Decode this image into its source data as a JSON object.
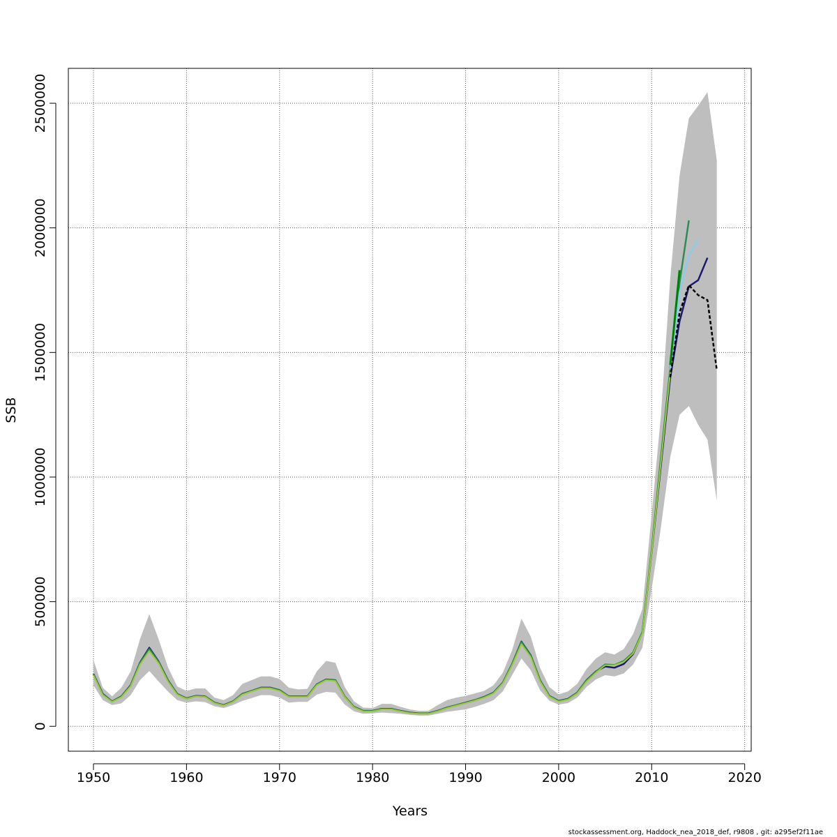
{
  "chart_data": {
    "type": "line",
    "xlabel": "Years",
    "ylabel": "SSB",
    "xlim": [
      1947.3,
      2020.7
    ],
    "ylim": [
      -100000,
      2640000
    ],
    "x_ticks": [
      1950,
      1960,
      1970,
      1980,
      1990,
      2000,
      2010,
      2020
    ],
    "y_ticks": [
      0,
      500000,
      1000000,
      1500000,
      2000000,
      2500000
    ],
    "y_tick_labels": [
      "0",
      "500000",
      "1000000",
      "1500000",
      "2000000",
      "2500000"
    ],
    "grid": true,
    "footer": "stockassessment.org, Haddock_nea_2018_def, r9808 , git: a295ef2f11ae",
    "confidence_band": {
      "years": [
        1950,
        1951,
        1952,
        1953,
        1954,
        1955,
        1956,
        1957,
        1958,
        1959,
        1960,
        1961,
        1962,
        1963,
        1964,
        1965,
        1966,
        1967,
        1968,
        1969,
        1970,
        1971,
        1972,
        1973,
        1974,
        1975,
        1976,
        1977,
        1978,
        1979,
        1980,
        1981,
        1982,
        1983,
        1984,
        1985,
        1986,
        1987,
        1988,
        1989,
        1990,
        1991,
        1992,
        1993,
        1994,
        1995,
        1996,
        1997,
        1998,
        1999,
        2000,
        2001,
        2002,
        2003,
        2004,
        2005,
        2006,
        2007,
        2008,
        2009,
        2010,
        2011,
        2012,
        2013,
        2014,
        2015,
        2016,
        2017
      ],
      "lower": [
        165000,
        105000,
        85000,
        92000,
        125000,
        185000,
        222000,
        180000,
        140000,
        105000,
        95000,
        100000,
        97000,
        80000,
        73000,
        85000,
        102000,
        113000,
        125000,
        125000,
        115000,
        95000,
        98000,
        98000,
        127000,
        138000,
        135000,
        88000,
        60000,
        50000,
        52000,
        55000,
        53000,
        50000,
        46000,
        43000,
        43000,
        50000,
        58000,
        63000,
        68000,
        78000,
        90000,
        105000,
        140000,
        205000,
        272000,
        225000,
        145000,
        103000,
        87000,
        93000,
        115000,
        158000,
        188000,
        205000,
        200000,
        212000,
        248000,
        315000,
        550000,
        800000,
        1080000,
        1250000,
        1285000,
        1210000,
        1150000,
        905000
      ],
      "upper": [
        265000,
        155000,
        120000,
        155000,
        220000,
        350000,
        450000,
        350000,
        238000,
        160000,
        142000,
        152000,
        152000,
        115000,
        105000,
        125000,
        170000,
        185000,
        200000,
        200000,
        190000,
        155000,
        148000,
        150000,
        220000,
        262000,
        255000,
        158000,
        100000,
        75000,
        73000,
        90000,
        90000,
        78000,
        68000,
        62000,
        62000,
        85000,
        105000,
        115000,
        122000,
        132000,
        142000,
        165000,
        215000,
        305000,
        432000,
        360000,
        235000,
        158000,
        128000,
        140000,
        170000,
        230000,
        272000,
        297000,
        288000,
        310000,
        370000,
        470000,
        850000,
        1250000,
        1800000,
        2210000,
        2440000,
        2490000,
        2545000,
        2270000
      ]
    },
    "series": [
      {
        "name": "",
        "color": "#191970",
        "x": [
          1950,
          1951,
          1952,
          1953,
          1954,
          1955,
          1956,
          1957,
          1958,
          1959,
          1960,
          1961,
          1962,
          1963,
          1964,
          1965,
          1966,
          1967,
          1968,
          1969,
          1970,
          1971,
          1972,
          1973,
          1974,
          1975,
          1976,
          1977,
          1978,
          1979,
          1980,
          1981,
          1982,
          1983,
          1984,
          1985,
          1986,
          1987,
          1988,
          1989,
          1990,
          1991,
          1992,
          1993,
          1994,
          1995,
          1996,
          1997,
          1998,
          1999,
          2000,
          2001,
          2002,
          2003,
          2004,
          2005,
          2006,
          2007,
          2008,
          2009,
          2010,
          2011,
          2012,
          2013,
          2014,
          2015,
          2016
        ],
        "y": [
          210000,
          130000,
          100000,
          120000,
          165000,
          255000,
          315000,
          260000,
          185000,
          130000,
          112000,
          122000,
          120000,
          95000,
          85000,
          100000,
          130000,
          142000,
          155000,
          155000,
          145000,
          120000,
          120000,
          120000,
          168000,
          188000,
          185000,
          120000,
          78000,
          62000,
          62000,
          70000,
          70000,
          62000,
          55000,
          52000,
          52000,
          62000,
          75000,
          85000,
          95000,
          105000,
          118000,
          135000,
          175000,
          250000,
          340000,
          285000,
          185000,
          122000,
          102000,
          110000,
          135000,
          185000,
          220000,
          240000,
          235000,
          250000,
          290000,
          375000,
          700000,
          1050000,
          1400000,
          1625000,
          1765000,
          1790000,
          1880000
        ],
        "width": 2.5,
        "dash": ""
      },
      {
        "name": "",
        "color": "#2E8B57",
        "x": [
          1950,
          1951,
          1952,
          1953,
          1954,
          1955,
          1956,
          1957,
          1958,
          1959,
          1960,
          1961,
          1962,
          1963,
          1964,
          1965,
          1966,
          1967,
          1968,
          1969,
          1970,
          1971,
          1972,
          1973,
          1974,
          1975,
          1976,
          1977,
          1978,
          1979,
          1980,
          1981,
          1982,
          1983,
          1984,
          1985,
          1986,
          1987,
          1988,
          1989,
          1990,
          1991,
          1992,
          1993,
          1994,
          1995,
          1996,
          1997,
          1998,
          1999,
          2000,
          2001,
          2002,
          2003,
          2004,
          2005,
          2006,
          2007,
          2008,
          2009,
          2010,
          2011,
          2012,
          2013,
          2014
        ],
        "y": [
          208000,
          128000,
          99000,
          119000,
          163000,
          253000,
          310000,
          258000,
          183000,
          129000,
          111000,
          121000,
          119000,
          94000,
          84000,
          99000,
          129000,
          141000,
          154000,
          154000,
          144000,
          119000,
          119000,
          119000,
          167000,
          187000,
          184000,
          119000,
          77000,
          61000,
          61000,
          69000,
          69000,
          61000,
          54000,
          51000,
          51000,
          61000,
          74000,
          84000,
          94000,
          104000,
          117000,
          134000,
          174000,
          249000,
          338000,
          283000,
          184000,
          121000,
          101000,
          109000,
          134000,
          184000,
          219000,
          248000,
          246000,
          262000,
          296000,
          378000,
          710000,
          1080000,
          1440000,
          1780000,
          2030000
        ],
        "width": 2.5,
        "dash": ""
      },
      {
        "name": "",
        "color": "#87CEEB",
        "x": [
          2012,
          2013,
          2014,
          2015
        ],
        "y": [
          1430000,
          1740000,
          1890000,
          1950000
        ],
        "width": 2.5,
        "dash": ""
      },
      {
        "name": "",
        "color": "#008000",
        "x": [
          2012,
          2013
        ],
        "y": [
          1450000,
          1830000
        ],
        "width": 3,
        "dash": ""
      },
      {
        "name": "",
        "color": "#9ACD32",
        "x": [
          1950,
          1951,
          1952,
          1953,
          1954,
          1955,
          1956,
          1957,
          1958,
          1959,
          1960,
          1961,
          1962,
          1963,
          1964,
          1965,
          1966,
          1967,
          1968,
          1969,
          1970,
          1971,
          1972,
          1973,
          1974,
          1975,
          1976,
          1977,
          1978,
          1979,
          1980,
          1981,
          1982,
          1983,
          1984,
          1985,
          1986,
          1987,
          1988,
          1989,
          1990,
          1991,
          1992,
          1993,
          1994,
          1995,
          1996,
          1997,
          1998,
          1999,
          2000,
          2001,
          2002,
          2003,
          2004,
          2005,
          2006,
          2007,
          2008,
          2009,
          2010,
          2011,
          2012
        ],
        "y": [
          205000,
          126000,
          98000,
          117000,
          161000,
          248000,
          302000,
          253000,
          180000,
          127000,
          110000,
          120000,
          118000,
          93000,
          83000,
          98000,
          127000,
          140000,
          152000,
          152000,
          142000,
          118000,
          118000,
          118000,
          165000,
          185000,
          182000,
          118000,
          76000,
          60000,
          60000,
          68000,
          68000,
          60000,
          53000,
          50000,
          50000,
          60000,
          73000,
          83000,
          93000,
          103000,
          115000,
          132000,
          172000,
          245000,
          330000,
          278000,
          180000,
          119000,
          99000,
          107000,
          132000,
          180000,
          215000,
          245000,
          245000,
          258000,
          292000,
          372000,
          700000,
          1060000,
          1420000
        ],
        "width": 2,
        "dash": ""
      },
      {
        "name": "",
        "color": "#000000",
        "x": [
          2012,
          2013,
          2014,
          2015,
          2016,
          2017
        ],
        "y": [
          1400000,
          1660000,
          1770000,
          1730000,
          1710000,
          1430000
        ],
        "width": 2.5,
        "dash": "5,3"
      }
    ]
  }
}
